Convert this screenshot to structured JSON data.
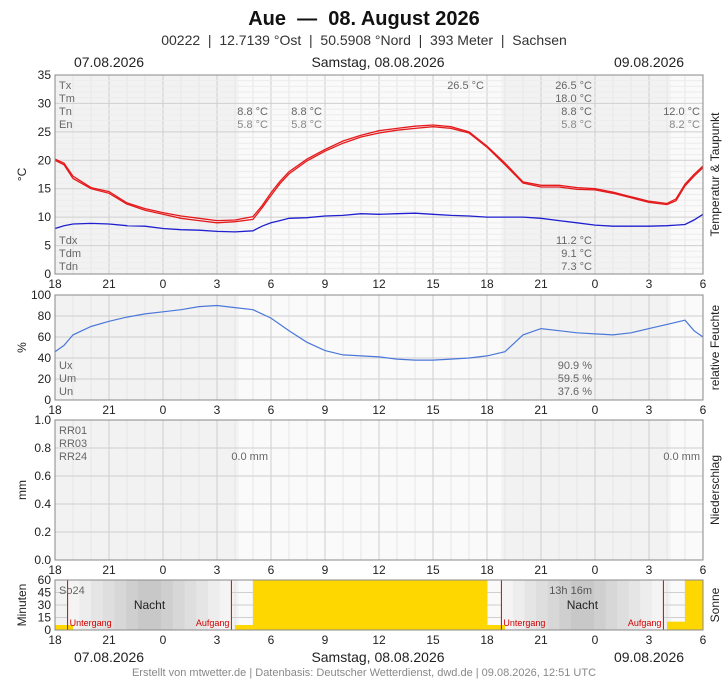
{
  "header": {
    "title": "Aue  —  08. August 2026",
    "subtitle": "00222  |  12.7139 °Ost  |  50.5908 °Nord  |  393 Meter  |  Sachsen",
    "date_left": "07.08.2026",
    "date_center": "Samstag, 08.08.2026",
    "date_right": "09.08.2026"
  },
  "footer": {
    "credit": "Erstellt von mtwetter.de | Datenbasis: Deutscher Wetterdienst, dwd.de | 09.08.2026, 12:51 UTC"
  },
  "colors": {
    "temp": "#e41a1c",
    "dew": "#1f1fd0",
    "humidity": "#4a78d8",
    "sun": "#ffd700",
    "marker": "#d40000",
    "grid": "#d6d6d6",
    "night_bg": "#f2f2f2",
    "dark_bg": "#d9d9d9"
  },
  "x_axis": {
    "tick_labels": [
      "18",
      "21",
      "0",
      "3",
      "6",
      "9",
      "12",
      "15",
      "18",
      "21",
      "0",
      "3",
      "6"
    ],
    "tick_hours": [
      -6,
      -3,
      0,
      3,
      6,
      9,
      12,
      15,
      18,
      21,
      24,
      27,
      30
    ],
    "range_hours": [
      -6,
      30
    ],
    "date_labels": [
      "07.08.2026",
      "Samstag, 08.08.2026",
      "09.08.2026"
    ]
  },
  "chart_data": [
    {
      "type": "line",
      "title": "",
      "ylabel": "°C",
      "right_label": "Temperatur & Taupunkt",
      "ylim": [
        0,
        35
      ],
      "yticks": [
        "0",
        "5",
        "10",
        "15",
        "20",
        "25",
        "30",
        "35"
      ],
      "ytick_values": [
        0,
        5,
        10,
        15,
        20,
        25,
        30,
        35
      ],
      "x_hours": [
        -6,
        -5.5,
        -5,
        -4,
        -3,
        -2,
        -1,
        0,
        1,
        2,
        3,
        4,
        5,
        5.5,
        6,
        6.5,
        7,
        8,
        9,
        10,
        11,
        12,
        13,
        14,
        15,
        16,
        17,
        18,
        19,
        20,
        21,
        22,
        23,
        24,
        25,
        26,
        27,
        28,
        28.5,
        29,
        29.5,
        30
      ],
      "series": [
        {
          "name": "Tx",
          "values": [
            20.2,
            19.5,
            17.2,
            15.2,
            14.5,
            12.5,
            11.5,
            10.8,
            10.2,
            9.8,
            9.4,
            9.5,
            10.1,
            12.0,
            14.3,
            16.3,
            18.0,
            20.2,
            21.9,
            23.4,
            24.4,
            25.2,
            25.6,
            26.0,
            26.2,
            25.9,
            25.0,
            22.5,
            19.5,
            16.2,
            15.6,
            15.6,
            15.2,
            15.0,
            14.4,
            13.6,
            12.8,
            12.4,
            13.2,
            15.8,
            17.5,
            19.0
          ]
        },
        {
          "name": "Tm",
          "values": [
            20.0,
            19.2,
            16.8,
            15.0,
            14.2,
            12.3,
            11.2,
            10.5,
            9.8,
            9.4,
            9.0,
            9.2,
            9.6,
            11.6,
            13.8,
            15.9,
            17.6,
            19.9,
            21.6,
            23.0,
            24.1,
            24.8,
            25.3,
            25.6,
            25.9,
            25.6,
            24.8,
            22.3,
            19.2,
            16.0,
            15.3,
            15.3,
            14.9,
            14.8,
            14.2,
            13.4,
            12.6,
            12.2,
            12.9,
            15.5,
            17.2,
            18.7
          ]
        },
        {
          "name": "Td",
          "values": [
            8.0,
            8.5,
            8.8,
            8.9,
            8.8,
            8.5,
            8.4,
            8.0,
            7.8,
            7.7,
            7.5,
            7.4,
            7.6,
            8.4,
            9.0,
            9.4,
            9.8,
            9.9,
            10.2,
            10.3,
            10.6,
            10.5,
            10.6,
            10.7,
            10.5,
            10.3,
            10.2,
            10.0,
            10.0,
            10.0,
            9.8,
            9.4,
            9.0,
            8.6,
            8.4,
            8.4,
            8.4,
            8.5,
            8.6,
            8.7,
            9.5,
            10.5
          ]
        }
      ],
      "annotations_left": [
        "Tx",
        "Tm",
        "Tn",
        "En"
      ],
      "annotations_left_bottom": [
        "Tdx",
        "Tdm",
        "Tdn"
      ],
      "annotations": {
        "tx_peak": "26.5 °C",
        "col1_tn": "8.8 °C",
        "col1_en": "5.8 °C",
        "col2_tn": "8.8 °C",
        "col2_en": "5.8 °C",
        "right_tx": "26.5 °C",
        "right_tm": "18.0 °C",
        "right_tn": "8.8 °C",
        "right_en": "5.8 °C",
        "far_tn": "12.0 °C",
        "far_en": "8.2 °C",
        "tdx": "11.2 °C",
        "tdm": "9.1 °C",
        "tdn": "7.3 °C"
      }
    },
    {
      "type": "line",
      "title": "",
      "ylabel": "%",
      "right_label": "relative Feuchte",
      "ylim": [
        0,
        100
      ],
      "yticks": [
        "0",
        "20",
        "40",
        "60",
        "80",
        "100"
      ],
      "ytick_values": [
        0,
        20,
        40,
        60,
        80,
        100
      ],
      "x_hours": [
        -6,
        -5.5,
        -5,
        -4,
        -3,
        -2,
        -1,
        0,
        1,
        2,
        3,
        4,
        5,
        6,
        7,
        8,
        9,
        10,
        11,
        12,
        13,
        14,
        15,
        16,
        17,
        18,
        19,
        20,
        21,
        22,
        23,
        24,
        25,
        26,
        27,
        28,
        29,
        29.5,
        30
      ],
      "series": [
        {
          "name": "rel. Feuchte",
          "values": [
            46,
            52,
            62,
            70,
            75,
            79,
            82,
            84,
            86,
            89,
            90,
            88,
            86,
            78,
            66,
            55,
            47,
            43,
            42,
            41,
            39,
            38,
            38,
            39,
            40,
            42,
            46,
            62,
            68,
            66,
            64,
            63,
            62,
            64,
            68,
            72,
            76,
            66,
            60
          ]
        }
      ],
      "annotations_left": [
        "Ux",
        "Um",
        "Un"
      ],
      "annotations": {
        "ux": "90.9 %",
        "um": "59.5 %",
        "un": "37.6 %"
      }
    },
    {
      "type": "bar",
      "title": "",
      "ylabel": "mm",
      "right_label": "Niederschlag",
      "ylim": [
        0,
        1.0
      ],
      "yticks": [
        "0.0",
        "0.2",
        "0.4",
        "0.6",
        "0.8",
        "1.0"
      ],
      "ytick_values": [
        0,
        0.2,
        0.4,
        0.6,
        0.8,
        1.0
      ],
      "values": [],
      "annotations_left": [
        "RR01",
        "RR03",
        "RR24"
      ],
      "annotations": {
        "rr24_day": "0.0 mm",
        "rr24_next": "0.0 mm"
      }
    },
    {
      "type": "bar",
      "title": "",
      "ylabel": "Minuten",
      "right_label": "Sonne",
      "ylim": [
        0,
        60
      ],
      "yticks": [
        "0",
        "15",
        "30",
        "45",
        "60"
      ],
      "ytick_values": [
        0,
        15,
        30,
        45,
        60
      ],
      "x_hours": [
        -6,
        -5,
        4,
        5,
        6,
        7,
        8,
        9,
        10,
        11,
        12,
        13,
        14,
        15,
        16,
        17,
        18,
        19,
        28,
        29
      ],
      "values": [
        6,
        0,
        6,
        60,
        60,
        60,
        60,
        60,
        60,
        60,
        60,
        60,
        60,
        60,
        60,
        60,
        6,
        0,
        10,
        60
      ],
      "annotations_left": [
        "So24"
      ],
      "annotations": {
        "sun_total": "13h 16m",
        "night": "Nacht",
        "sunset": "Untergang",
        "sunrise": "Aufgang"
      },
      "markers_hours": {
        "sunset": [
          -5.3,
          18.8
        ],
        "sunrise": [
          3.8,
          27.8
        ]
      }
    }
  ]
}
